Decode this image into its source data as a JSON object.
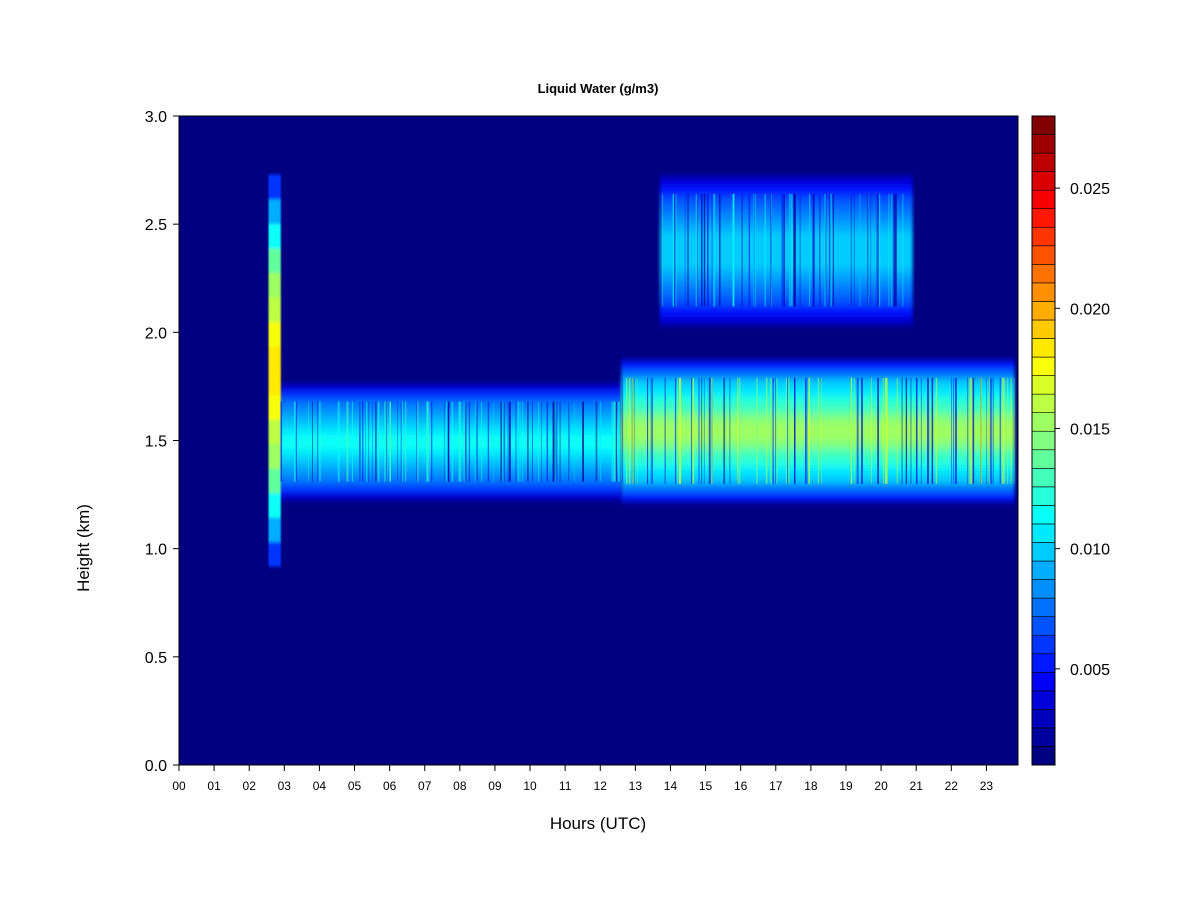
{
  "chart_data": {
    "type": "heatmap",
    "title": "Liquid Water (g/m3)",
    "xlabel": "Hours (UTC)",
    "ylabel": "Height (km)",
    "xlim": [
      0,
      23.9
    ],
    "ylim": [
      0,
      3.0
    ],
    "x_ticks": [
      "00",
      "01",
      "02",
      "03",
      "04",
      "05",
      "06",
      "07",
      "08",
      "09",
      "10",
      "11",
      "12",
      "13",
      "14",
      "15",
      "16",
      "17",
      "18",
      "19",
      "20",
      "21",
      "22",
      "23"
    ],
    "y_ticks": [
      "0.0",
      "0.5",
      "1.0",
      "1.5",
      "2.0",
      "2.5",
      "3.0"
    ],
    "colorbar": {
      "range": [
        0.001,
        0.028
      ],
      "tick_values": [
        0.005,
        0.01,
        0.015,
        0.02,
        0.025
      ],
      "tick_labels": [
        "0.005",
        "0.010",
        "0.015",
        "0.020",
        "0.025"
      ],
      "colors": [
        "#000080",
        "#00009E",
        "#0000BC",
        "#0000DA",
        "#0000F8",
        "#0017FF",
        "#0035FF",
        "#0053FF",
        "#0071FF",
        "#008FFF",
        "#00ADFF",
        "#00CBFF",
        "#00E9FF",
        "#08FFF7",
        "#26FFD9",
        "#44FFBB",
        "#62FF9D",
        "#80FF80",
        "#9EFF62",
        "#BCFF44",
        "#DAFF26",
        "#F8FF08",
        "#FFE900",
        "#FFCB00",
        "#FFAD00",
        "#FF8F00",
        "#FF7100",
        "#FF5300",
        "#FF3500",
        "#FF1700",
        "#F80000",
        "#DA0000",
        "#BC0000",
        "#9E0000",
        "#800000"
      ]
    },
    "background_value": 0.001,
    "layers": [
      {
        "name": "",
        "x_start": 2.85,
        "x_end": 12.6,
        "y_bottom": 1.23,
        "y_top": 1.76,
        "peak_value": 0.0115
      },
      {
        "name": "",
        "x_start": 12.6,
        "x_end": 23.8,
        "y_bottom": 1.22,
        "y_top": 1.87,
        "peak_value": 0.0155
      },
      {
        "name": "",
        "x_start": 13.7,
        "x_end": 20.9,
        "y_bottom": 2.04,
        "y_top": 2.72,
        "peak_value": 0.0105
      },
      {
        "name": "",
        "x_start": 2.55,
        "x_end": 2.9,
        "y_bottom": 0.92,
        "y_top": 2.73,
        "peak_value": 0.019
      }
    ]
  }
}
